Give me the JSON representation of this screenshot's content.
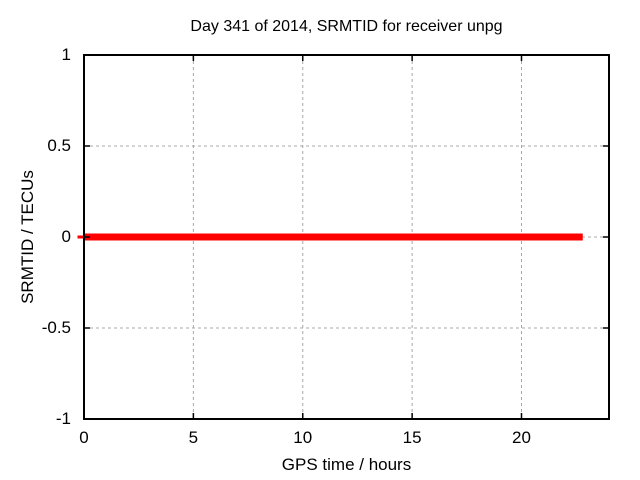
{
  "page": {
    "background": "#ffffff",
    "text_color": "#000000"
  },
  "chart_data": {
    "type": "line",
    "title": "Day 341 of 2014, SRMTID for receiver unpg",
    "xlabel": "GPS time / hours",
    "ylabel": "SRMTID / TECUs",
    "xlim": [
      0,
      24
    ],
    "ylim": [
      -1,
      1
    ],
    "xticks": [
      0,
      5,
      10,
      15,
      20
    ],
    "xtick_labels": [
      "0",
      "5",
      "10",
      "15",
      "20"
    ],
    "yticks": [
      1,
      0.5,
      0,
      -0.5,
      -1
    ],
    "ytick_labels": [
      "1",
      "0.5",
      "0",
      "-0.5",
      "-1"
    ],
    "grid": true,
    "grid_color": "#a8a8a8",
    "axis_color": "#000000",
    "legend": "none",
    "series": [
      {
        "name": "SRMTID",
        "color": "#ff0000",
        "line_width": 7,
        "left_overhang": true,
        "x": [
          0,
          22.8
        ],
        "y": [
          0,
          0
        ]
      }
    ]
  }
}
